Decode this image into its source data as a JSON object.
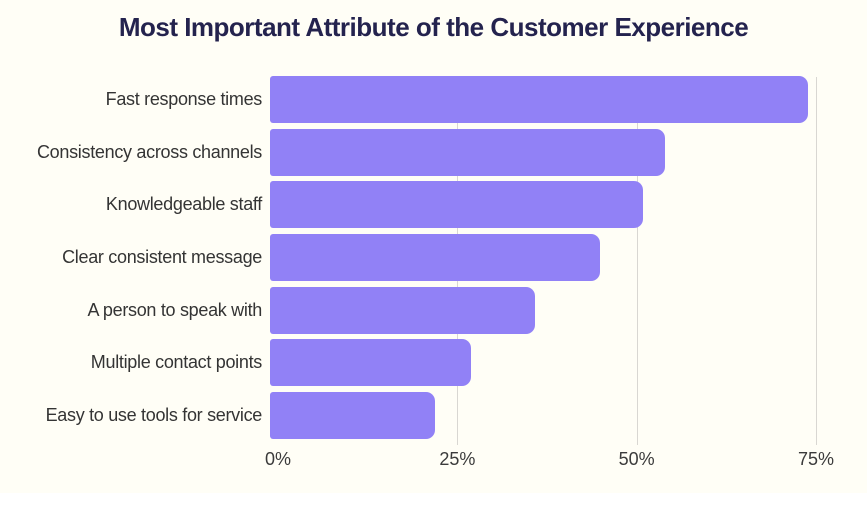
{
  "page": {
    "background": "#FFFFFF",
    "canvas_background": "#FFFEF6"
  },
  "chart": {
    "title": "Most Important Attribute of the Customer Experience"
  },
  "chart_data": {
    "type": "bar",
    "orientation": "horizontal",
    "title": "Most Important Attribute of the Customer Experience",
    "categories": [
      "Fast response times",
      "Consistency across channels",
      "Knowledgeable staff",
      "Clear consistent message",
      "A person to speak with",
      "Multiple contact points",
      "Easy to use tools for service"
    ],
    "values": [
      75,
      55,
      52,
      46,
      37,
      28,
      23
    ],
    "unit": "%",
    "xlabel": "",
    "ylabel": "",
    "xlim": [
      0,
      78
    ],
    "xticks": [
      {
        "value": 0,
        "label": "0%"
      },
      {
        "value": 25,
        "label": "25%"
      },
      {
        "value": 50,
        "label": "50%"
      },
      {
        "value": 75,
        "label": "75%"
      }
    ],
    "grid": "vertical-lines-at-ticks",
    "legend": "none",
    "colors": {
      "bar": "#9181F6",
      "gridline": "#D9D7D2",
      "title": "#24234E",
      "axis_text": "#3B3B3B",
      "category_text": "#343434",
      "background": "#FFFEF6"
    }
  }
}
